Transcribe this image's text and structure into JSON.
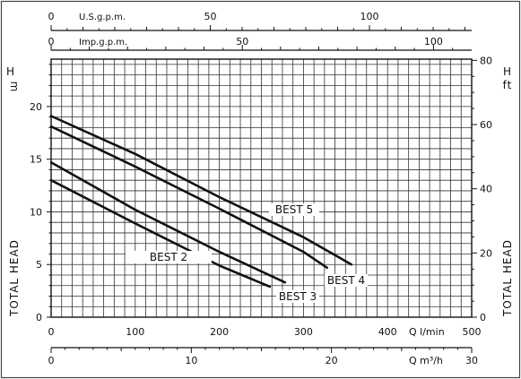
{
  "chart_data": {
    "type": "line",
    "ylabel_left": "TOTAL HEAD",
    "ylabel_right": "TOTAL HEAD",
    "unit_left": "m",
    "unit_left_letter": "H",
    "unit_right": "ft",
    "unit_right_letter": "H",
    "xlabel_lmin": "Q l/min",
    "xlabel_m3h": "Q m³/h",
    "xlabel_usgpm": "U.S.g.p.m.",
    "xlabel_impgpm": "Imp.g.p.m.",
    "x_lmin_ticks": [
      0,
      100,
      200,
      300,
      400,
      500
    ],
    "x_lmin_tick_labels": [
      "0",
      "100",
      "200",
      "300",
      "400",
      "500"
    ],
    "x_m3h_ticks": [
      0,
      10,
      20,
      30
    ],
    "x_m3h_tick_labels": [
      "0",
      "10",
      "20",
      "30"
    ],
    "x_usgpm_ticks": [
      0,
      50,
      100
    ],
    "x_usgpm_tick_labels": [
      "0",
      "50",
      "100"
    ],
    "x_impgpm_ticks": [
      0,
      50,
      100
    ],
    "x_impgpm_tick_labels": [
      "0",
      "50",
      "100"
    ],
    "y_m_ticks": [
      0,
      5,
      10,
      15,
      20
    ],
    "y_m_tick_labels": [
      "0",
      "5",
      "10",
      "15",
      "20"
    ],
    "y_ft_ticks": [
      0,
      20,
      40,
      60,
      80
    ],
    "y_ft_tick_labels": [
      "0",
      "20",
      "40",
      "60",
      "80"
    ],
    "xlim_lmin": [
      0,
      500
    ],
    "ylim_m": [
      0,
      24.5
    ],
    "grid": true,
    "series": [
      {
        "name": "BEST 2",
        "x": [
          0,
          100,
          200,
          260
        ],
        "y": [
          13.0,
          8.9,
          4.9,
          2.9
        ]
      },
      {
        "name": "BEST 3",
        "x": [
          0,
          100,
          200,
          278
        ],
        "y": [
          14.7,
          10.2,
          6.2,
          3.3
        ]
      },
      {
        "name": "BEST 4",
        "x": [
          0,
          100,
          200,
          300,
          328
        ],
        "y": [
          18.1,
          14.3,
          10.3,
          6.2,
          4.7
        ]
      },
      {
        "name": "BEST 5",
        "x": [
          0,
          100,
          200,
          300,
          357
        ],
        "y": [
          19.1,
          15.5,
          11.4,
          7.6,
          5.0
        ]
      }
    ]
  }
}
